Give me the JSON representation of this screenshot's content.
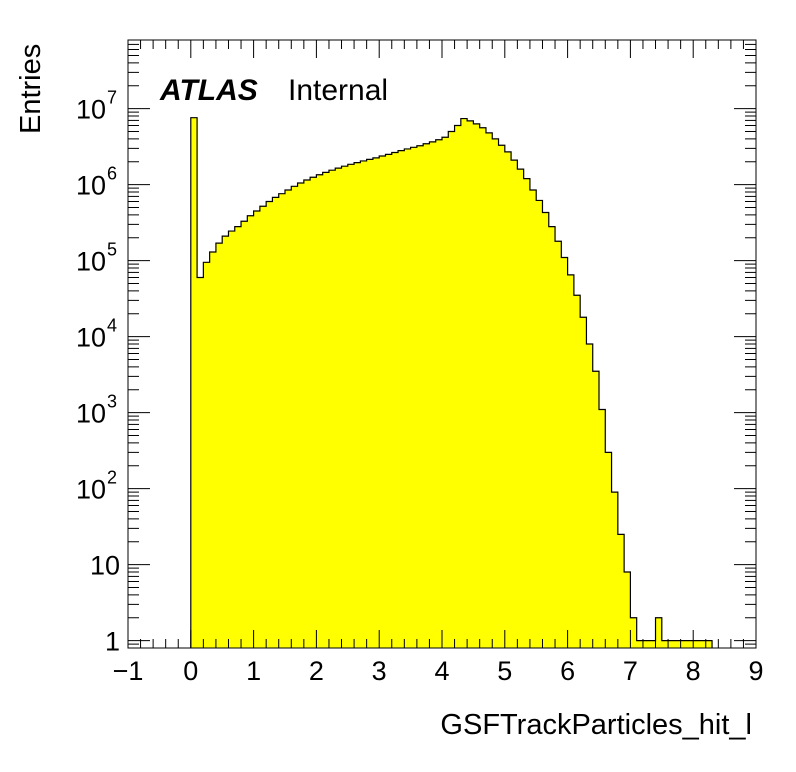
{
  "chart_data": {
    "type": "bar",
    "histogram": true,
    "xlabel": "GSFTrackParticles_hit_l",
    "ylabel": "Entries",
    "annotation_bold": "ATLAS",
    "annotation_text": "Internal",
    "xlim": [
      -1,
      9
    ],
    "ylim": [
      0.8,
      80000000
    ],
    "yscale": "log",
    "x_ticks": [
      "−1",
      "0",
      "1",
      "2",
      "3",
      "4",
      "5",
      "6",
      "7",
      "8",
      "9"
    ],
    "y_ticks": [
      {
        "v": 1,
        "base": "1",
        "exp": ""
      },
      {
        "v": 10,
        "base": "10",
        "exp": ""
      },
      {
        "v": 100,
        "base": "10",
        "exp": "2"
      },
      {
        "v": 1000,
        "base": "10",
        "exp": "3"
      },
      {
        "v": 10000,
        "base": "10",
        "exp": "4"
      },
      {
        "v": 100000,
        "base": "10",
        "exp": "5"
      },
      {
        "v": 1000000,
        "base": "10",
        "exp": "6"
      },
      {
        "v": 10000000,
        "base": "10",
        "exp": "7"
      }
    ],
    "fill_color": "#ffff00",
    "line_color": "#000000",
    "bin_width": 0.1,
    "bin_start": 0.0,
    "values": [
      7600000,
      60000,
      95000,
      130000,
      170000,
      210000,
      245000,
      280000,
      330000,
      390000,
      450000,
      520000,
      600000,
      680000,
      760000,
      850000,
      950000,
      1050000,
      1150000,
      1250000,
      1350000,
      1450000,
      1550000,
      1650000,
      1750000,
      1850000,
      1950000,
      2050000,
      2150000,
      2250000,
      2380000,
      2500000,
      2650000,
      2800000,
      2950000,
      3100000,
      3250000,
      3450000,
      3650000,
      3900000,
      4200000,
      5000000,
      6000000,
      7400000,
      6900000,
      6300000,
      5600000,
      4800000,
      4000000,
      3300000,
      2700000,
      2100000,
      1600000,
      1200000,
      850000,
      620000,
      430000,
      280000,
      180000,
      110000,
      65000,
      35000,
      18000,
      8000,
      3500,
      1100,
      300,
      90,
      25,
      8,
      2,
      1,
      1,
      1,
      2,
      1,
      1,
      1,
      1,
      1,
      1,
      1,
      1
    ]
  }
}
